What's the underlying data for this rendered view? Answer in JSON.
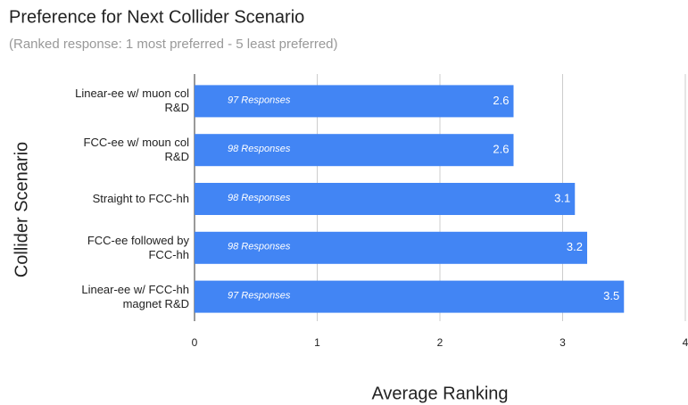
{
  "chart_data": {
    "type": "hbar",
    "title": "Preference for Next Collider Scenario",
    "subtitle": "(Ranked response: 1 most preferred - 5 least preferred)",
    "y_label": "Collider Scenario",
    "x_label": "Average Ranking",
    "categories": [
      "Linear-ee w/ muon col R&D",
      "FCC-ee w/ moun col R&D",
      "Straight to FCC-hh",
      "FCC-ee followed by FCC-hh",
      "Linear-ee w/ FCC-hh magnet R&D"
    ],
    "values": [
      2.6,
      2.6,
      3.1,
      3.2,
      3.5
    ],
    "annotations": [
      "97 Responses",
      "98 Responses",
      "98 Responses",
      "98 Responses",
      "97 Responses"
    ],
    "color": "#4285f4",
    "xlim": [
      0,
      4
    ],
    "xticks": [
      0,
      1,
      2,
      3,
      4
    ],
    "grid": true
  }
}
